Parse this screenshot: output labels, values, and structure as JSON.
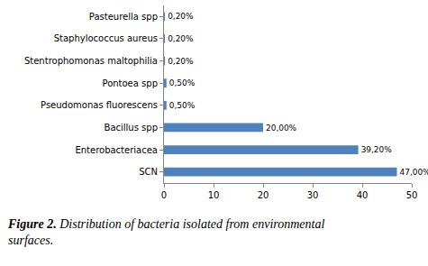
{
  "chart_data": {
    "type": "bar",
    "orientation": "horizontal",
    "title": "Figure 2. Distribution of bacteria isolated from environmental surfaces.",
    "categories": [
      "Pasteurella spp",
      "Staphylococcus aureus",
      "Stentrophomonas maltophilia",
      "Pontoea spp",
      "Pseudomonas fluorescens",
      "Bacillus spp",
      "Enterobacteriacea",
      "SCN"
    ],
    "values": [
      0.2,
      0.2,
      0.2,
      0.5,
      0.5,
      20,
      39.2,
      47
    ],
    "value_labels": [
      "0,20%",
      "0,20%",
      "0,20%",
      "0,50%",
      "0,50%",
      "20,00%",
      "39,20%",
      "47,00%"
    ],
    "data_labels": true,
    "color": "#4f81bd",
    "xlim": [
      0,
      50
    ],
    "xticks": [
      0,
      10,
      20,
      30,
      40,
      50
    ],
    "grid": false
  }
}
